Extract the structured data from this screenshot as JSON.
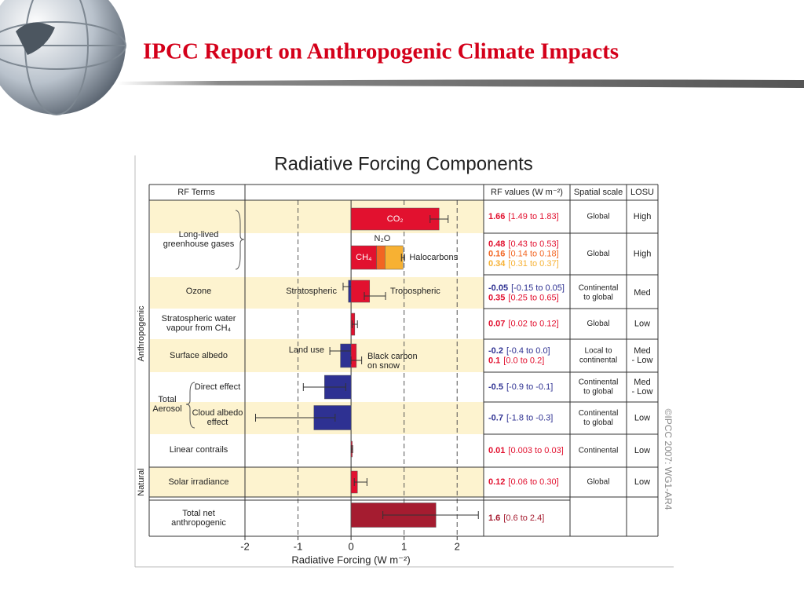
{
  "slide": {
    "title": "IPCC Report on Anthropogenic Climate Impacts"
  },
  "chart_data": {
    "type": "bar",
    "orientation": "horizontal",
    "title": "Radiative Forcing Components",
    "x_label": "Radiative Forcing (W m⁻²)",
    "headers": {
      "terms": "RF Terms",
      "values": "RF values (W m⁻²)",
      "scale": "Spatial scale",
      "losu": "LOSU"
    },
    "sections": [
      "Anthropogenic",
      "Natural"
    ],
    "aerosol_label": [
      "Total",
      "Aerosol"
    ],
    "credit": "©IPCC 2007: WG1-AR4",
    "xlim": [
      -2,
      2.5
    ],
    "xticks": [
      -2,
      -1,
      0,
      1,
      2
    ],
    "grid": true,
    "rows": [
      {
        "scale": [
          "Global"
        ],
        "losu": [
          "High"
        ],
        "bars": [
          {
            "name": [
              "CO₂"
            ],
            "value": 1.66,
            "range": [
              1.49,
              1.83
            ],
            "range_label": "[1.49 to 1.83]",
            "color": "#e2112f"
          }
        ]
      },
      {
        "label": [
          "Long-lived",
          "greenhouse gases"
        ],
        "scale": [
          "Global"
        ],
        "losu": [
          "High"
        ],
        "stacked": true,
        "bars": [
          {
            "name": [
              "CH₄"
            ],
            "value": 0.48,
            "range": [
              0.43,
              0.53
            ],
            "range_label": "[0.43 to 0.53]",
            "color": "#e2112f"
          },
          {
            "name": [
              "N₂O"
            ],
            "value": 0.16,
            "range": [
              0.14,
              0.18
            ],
            "range_label": "[0.14 to 0.18]",
            "color": "#f26522"
          },
          {
            "name": [
              "Halocarbons"
            ],
            "value": 0.34,
            "range": [
              0.31,
              0.37
            ],
            "range_label": "[0.31 to 0.37]",
            "color": "#f7b133"
          }
        ]
      },
      {
        "label": [
          "Ozone"
        ],
        "scale": [
          "Continental",
          "to global"
        ],
        "losu": [
          "Med"
        ],
        "bars": [
          {
            "name": [
              "Stratospheric"
            ],
            "value": -0.05,
            "range": [
              -0.15,
              0.05
            ],
            "range_label": "[-0.15 to 0.05]",
            "color": "#2e3192"
          },
          {
            "name": [
              "Tropospheric"
            ],
            "value": 0.35,
            "range": [
              0.25,
              0.65
            ],
            "range_label": "[0.25 to 0.65]",
            "color": "#e2112f"
          }
        ]
      },
      {
        "label": [
          "Stratospheric water",
          "vapour from CH₄"
        ],
        "scale": [
          "Global"
        ],
        "losu": [
          "Low"
        ],
        "bars": [
          {
            "value": 0.07,
            "range": [
              0.02,
              0.12
            ],
            "range_label": "[0.02 to 0.12]",
            "color": "#e2112f"
          }
        ]
      },
      {
        "label": [
          "Surface albedo"
        ],
        "scale": [
          "Local to",
          "continental"
        ],
        "losu": [
          "Med",
          "- Low"
        ],
        "bars": [
          {
            "name": [
              "Land use"
            ],
            "value": -0.2,
            "range": [
              -0.4,
              0.0
            ],
            "range_label": "[-0.4 to 0.0]",
            "color": "#2e3192"
          },
          {
            "name": [
              "Black carbon",
              "on snow"
            ],
            "value": 0.1,
            "range": [
              0.0,
              0.2
            ],
            "range_label": "[0.0 to 0.2]",
            "color": "#e2112f"
          }
        ]
      },
      {
        "label": [
          "Direct effect"
        ],
        "scale": [
          "Continental",
          "to global"
        ],
        "losu": [
          "Med",
          "- Low"
        ],
        "bars": [
          {
            "value": -0.5,
            "range": [
              -0.9,
              -0.1
            ],
            "range_label": "[-0.9 to -0.1]",
            "color": "#2e3192"
          }
        ]
      },
      {
        "label": [
          "Cloud albedo",
          "effect"
        ],
        "scale": [
          "Continental",
          "to global"
        ],
        "losu": [
          "Low"
        ],
        "bars": [
          {
            "value": -0.7,
            "range": [
              -1.8,
              -0.3
            ],
            "range_label": "[-1.8 to -0.3]",
            "color": "#2e3192"
          }
        ]
      },
      {
        "label": [
          "Linear contrails"
        ],
        "scale": [
          "Continental"
        ],
        "losu": [
          "Low"
        ],
        "bars": [
          {
            "value": 0.01,
            "range": [
              0.003,
              0.03
            ],
            "range_label": "[0.003 to 0.03]",
            "color": "#e2112f"
          }
        ]
      },
      {
        "label": [
          "Solar irradiance"
        ],
        "scale": [
          "Global"
        ],
        "losu": [
          "Low"
        ],
        "bars": [
          {
            "value": 0.12,
            "range": [
              0.06,
              0.3
            ],
            "range_label": "[0.06 to 0.30]",
            "color": "#e2112f"
          }
        ]
      },
      {
        "label": [
          "Total net",
          "anthropogenic"
        ],
        "bars": [
          {
            "value": 1.6,
            "range": [
              0.6,
              2.4
            ],
            "range_label": "[0.6 to 2.4]",
            "color": "#a51c30"
          }
        ]
      }
    ]
  }
}
